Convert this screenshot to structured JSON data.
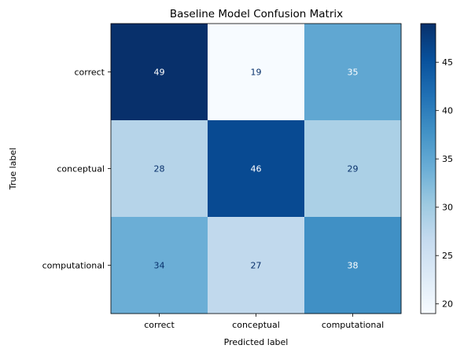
{
  "chart_data": {
    "type": "heatmap",
    "title": "Baseline Model Confusion Matrix",
    "xlabel": "Predicted label",
    "ylabel": "True label",
    "x_categories": [
      "correct",
      "conceptual",
      "computational"
    ],
    "y_categories": [
      "correct",
      "conceptual",
      "computational"
    ],
    "values": [
      [
        49,
        19,
        35
      ],
      [
        28,
        46,
        29
      ],
      [
        34,
        27,
        38
      ]
    ],
    "colormap": "Blues",
    "colorbar": {
      "range": [
        19,
        49
      ],
      "ticks": [
        20,
        25,
        30,
        35,
        40,
        45
      ]
    }
  }
}
